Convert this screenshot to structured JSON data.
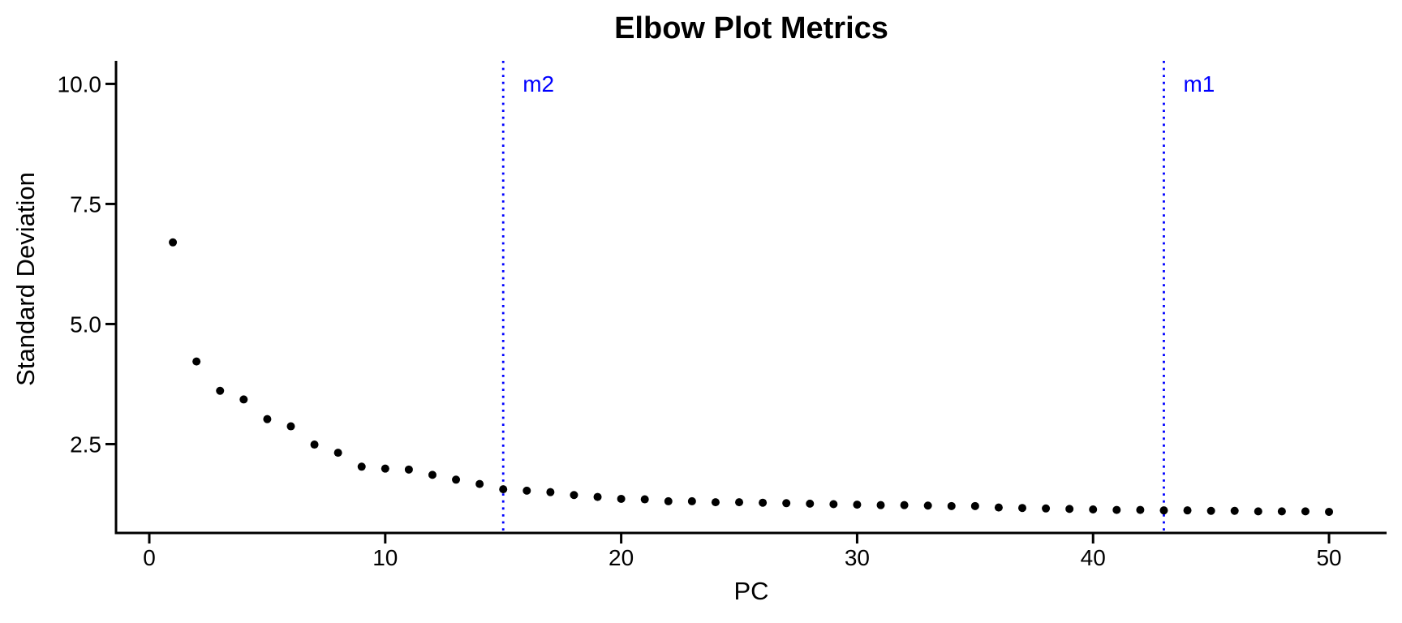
{
  "title": "Elbow Plot Metrics",
  "chart_data": {
    "type": "scatter",
    "title": "Elbow Plot Metrics",
    "xlabel": "PC",
    "ylabel": "Standard Deviation",
    "x": [
      1,
      2,
      3,
      4,
      5,
      6,
      7,
      8,
      9,
      10,
      11,
      12,
      13,
      14,
      15,
      16,
      17,
      18,
      19,
      20,
      21,
      22,
      23,
      24,
      25,
      26,
      27,
      28,
      29,
      30,
      31,
      32,
      33,
      34,
      35,
      36,
      37,
      38,
      39,
      40,
      41,
      42,
      43,
      44,
      45,
      46,
      47,
      48,
      49,
      50
    ],
    "y": [
      6.7,
      4.22,
      3.61,
      3.43,
      3.02,
      2.87,
      2.49,
      2.32,
      2.03,
      1.99,
      1.97,
      1.86,
      1.76,
      1.67,
      1.56,
      1.53,
      1.5,
      1.44,
      1.4,
      1.36,
      1.35,
      1.31,
      1.31,
      1.29,
      1.29,
      1.28,
      1.27,
      1.26,
      1.25,
      1.24,
      1.23,
      1.23,
      1.22,
      1.21,
      1.21,
      1.18,
      1.17,
      1.16,
      1.15,
      1.14,
      1.13,
      1.13,
      1.12,
      1.12,
      1.11,
      1.11,
      1.1,
      1.1,
      1.1,
      1.09
    ],
    "x_ticks": [
      0,
      10,
      20,
      30,
      40,
      50
    ],
    "x_tick_labels": [
      "0",
      "10",
      "20",
      "30",
      "40",
      "50"
    ],
    "y_ticks": [
      2.5,
      5.0,
      7.5,
      10.0
    ],
    "y_tick_labels": [
      "2.5",
      "5.0",
      "7.5",
      "10.0"
    ],
    "xlim": [
      -1.41,
      52.44
    ],
    "ylim": [
      0.65,
      10.48
    ],
    "grid": false,
    "legend": "none",
    "vlines": [
      {
        "x": 15,
        "label": "m2",
        "style": "dotted"
      },
      {
        "x": 43,
        "label": "m1",
        "style": "dotted"
      }
    ],
    "colors": {
      "point": "#000000",
      "vline": "#0000FF",
      "vline_label": "#0000FF",
      "axis": "#000000",
      "text": "#000000",
      "background": "#FFFFFF"
    }
  }
}
